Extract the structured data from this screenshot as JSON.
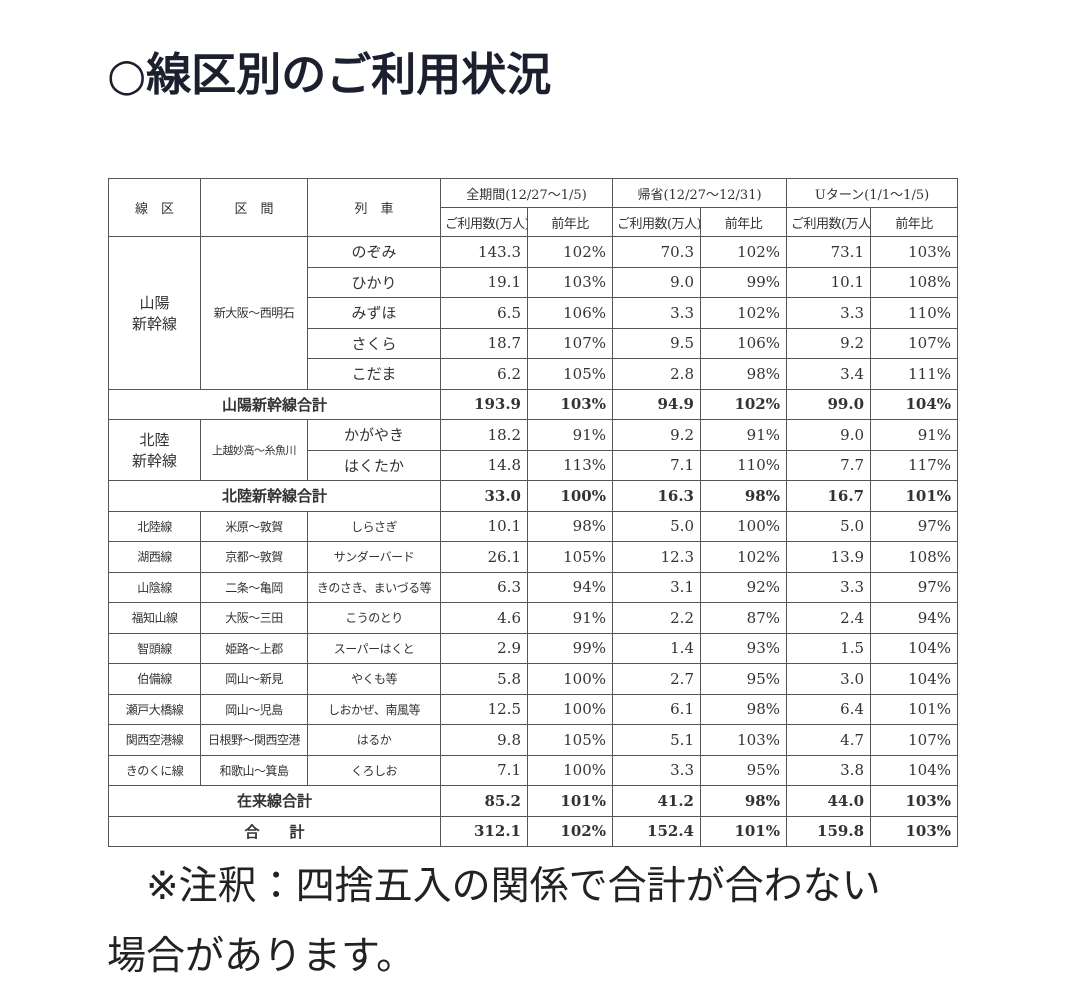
{
  "title": "○線区別のご利用状況",
  "table": {
    "header": {
      "line": "線　区",
      "section": "区　間",
      "train": "列　車",
      "periods": [
        {
          "label": "全期間(12/27～1/5)",
          "sub": [
            "ご利用数(万人)",
            "前年比"
          ]
        },
        {
          "label": "帰省(12/27～12/31)",
          "sub": [
            "ご利用数(万人)",
            "前年比"
          ]
        },
        {
          "label": "Uターン(1/1～1/5)",
          "sub": [
            "ご利用数(万人)",
            "前年比"
          ]
        }
      ]
    },
    "sanyo": {
      "line": [
        "山陽",
        "新幹線"
      ],
      "section": "新大阪～西明石",
      "rows": [
        {
          "train": "のぞみ",
          "values": [
            "143.3",
            "102%",
            "70.3",
            "102%",
            "73.1",
            "103%"
          ]
        },
        {
          "train": "ひかり",
          "values": [
            "19.1",
            "103%",
            "9.0",
            "99%",
            "10.1",
            "108%"
          ]
        },
        {
          "train": "みずほ",
          "values": [
            "6.5",
            "106%",
            "3.3",
            "102%",
            "3.3",
            "110%"
          ]
        },
        {
          "train": "さくら",
          "values": [
            "18.7",
            "107%",
            "9.5",
            "106%",
            "9.2",
            "107%"
          ]
        },
        {
          "train": "こだま",
          "values": [
            "6.2",
            "105%",
            "2.8",
            "98%",
            "3.4",
            "111%"
          ]
        }
      ],
      "total": {
        "label": "山陽新幹線合計",
        "values": [
          "193.9",
          "103%",
          "94.9",
          "102%",
          "99.0",
          "104%"
        ]
      }
    },
    "hokuriku": {
      "line": [
        "北陸",
        "新幹線"
      ],
      "section": "上越妙高～糸魚川",
      "rows": [
        {
          "train": "かがやき",
          "values": [
            "18.2",
            "91%",
            "9.2",
            "91%",
            "9.0",
            "91%"
          ]
        },
        {
          "train": "はくたか",
          "values": [
            "14.8",
            "113%",
            "7.1",
            "110%",
            "7.7",
            "117%"
          ]
        }
      ],
      "total": {
        "label": "北陸新幹線合計",
        "values": [
          "33.0",
          "100%",
          "16.3",
          "98%",
          "16.7",
          "101%"
        ]
      }
    },
    "conventional": {
      "rows": [
        {
          "line": "北陸線",
          "section": "米原～敦賀",
          "train": "しらさぎ",
          "values": [
            "10.1",
            "98%",
            "5.0",
            "100%",
            "5.0",
            "97%"
          ]
        },
        {
          "line": "湖西線",
          "section": "京都～敦賀",
          "train": "サンダーバード",
          "values": [
            "26.1",
            "105%",
            "12.3",
            "102%",
            "13.9",
            "108%"
          ]
        },
        {
          "line": "山陰線",
          "section": "二条～亀岡",
          "train": "きのさき、まいづる等",
          "values": [
            "6.3",
            "94%",
            "3.1",
            "92%",
            "3.3",
            "97%"
          ]
        },
        {
          "line": "福知山線",
          "section": "大阪～三田",
          "train": "こうのとり",
          "values": [
            "4.6",
            "91%",
            "2.2",
            "87%",
            "2.4",
            "94%"
          ]
        },
        {
          "line": "智頭線",
          "section": "姫路～上郡",
          "train": "スーパーはくと",
          "values": [
            "2.9",
            "99%",
            "1.4",
            "93%",
            "1.5",
            "104%"
          ]
        },
        {
          "line": "伯備線",
          "section": "岡山～新見",
          "train": "やくも等",
          "values": [
            "5.8",
            "100%",
            "2.7",
            "95%",
            "3.0",
            "104%"
          ]
        },
        {
          "line": "瀬戸大橋線",
          "section": "岡山～児島",
          "train": "しおかぜ、南風等",
          "values": [
            "12.5",
            "100%",
            "6.1",
            "98%",
            "6.4",
            "101%"
          ]
        },
        {
          "line": "関西空港線",
          "section": "日根野～関西空港",
          "train": "はるか",
          "values": [
            "9.8",
            "105%",
            "5.1",
            "103%",
            "4.7",
            "107%"
          ]
        },
        {
          "line": "きのくに線",
          "section": "和歌山～箕島",
          "train": "くろしお",
          "values": [
            "7.1",
            "100%",
            "3.3",
            "95%",
            "3.8",
            "104%"
          ]
        }
      ],
      "total": {
        "label": "在来線合計",
        "values": [
          "85.2",
          "101%",
          "41.2",
          "98%",
          "44.0",
          "103%"
        ]
      }
    },
    "grand_total": {
      "label": "合　　計",
      "values": [
        "312.1",
        "102%",
        "152.4",
        "101%",
        "159.8",
        "103%"
      ]
    }
  },
  "note": "※注釈：四捨五入の関係で合計が合わない場合があります。"
}
